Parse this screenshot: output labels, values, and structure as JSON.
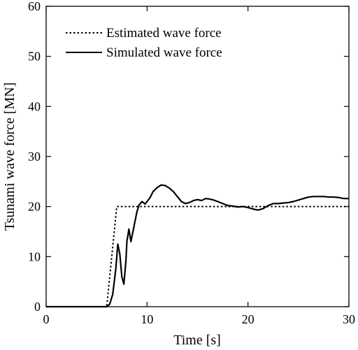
{
  "chart_data": {
    "type": "line",
    "title": "",
    "xlabel": "Time [s]",
    "ylabel": "Tsunami wave force [MN]",
    "xlim": [
      0,
      30
    ],
    "ylim": [
      0,
      60
    ],
    "x_ticks": [
      0,
      10,
      20,
      30
    ],
    "y_ticks": [
      0,
      10,
      20,
      30,
      40,
      50,
      60
    ],
    "grid": false,
    "legend_position": "top-left",
    "series": [
      {
        "name": "Estimated wave force",
        "style": "dotted",
        "color": "#000000",
        "x": [
          0,
          6.0,
          7.0,
          30
        ],
        "y": [
          0,
          0,
          20,
          20
        ]
      },
      {
        "name": "Simulated wave force",
        "style": "solid",
        "color": "#000000",
        "x": [
          0,
          6.0,
          6.3,
          6.6,
          6.9,
          7.1,
          7.3,
          7.5,
          7.7,
          7.9,
          8.0,
          8.2,
          8.4,
          8.6,
          8.8,
          9.0,
          9.2,
          9.5,
          9.8,
          10.0,
          10.3,
          10.6,
          11.0,
          11.4,
          11.8,
          12.2,
          12.6,
          13.0,
          13.4,
          13.8,
          14.2,
          14.6,
          15.0,
          15.4,
          15.8,
          16.2,
          16.6,
          17.0,
          17.5,
          18.0,
          18.5,
          19.0,
          19.5,
          20.0,
          20.5,
          21.0,
          21.5,
          22.0,
          22.5,
          23.0,
          23.5,
          24.0,
          24.5,
          25.0,
          25.5,
          26.0,
          26.5,
          27.0,
          27.5,
          28.0,
          28.5,
          29.0,
          29.5,
          30.0
        ],
        "y": [
          0,
          0,
          0.5,
          2.5,
          7.5,
          12.5,
          10.5,
          6,
          4.5,
          9,
          13,
          15.5,
          13,
          15,
          17,
          19,
          20.3,
          21,
          20.5,
          21,
          21.8,
          23,
          23.8,
          24.3,
          24.2,
          23.7,
          23,
          22,
          21,
          20.6,
          20.8,
          21.2,
          21.4,
          21.2,
          21.6,
          21.5,
          21.3,
          21,
          20.6,
          20.2,
          20.1,
          19.9,
          20,
          19.8,
          19.5,
          19.3,
          19.6,
          20.2,
          20.6,
          20.6,
          20.7,
          20.8,
          21,
          21.3,
          21.6,
          21.9,
          22,
          22,
          22,
          21.9,
          21.9,
          21.8,
          21.6,
          21.6
        ]
      }
    ]
  }
}
